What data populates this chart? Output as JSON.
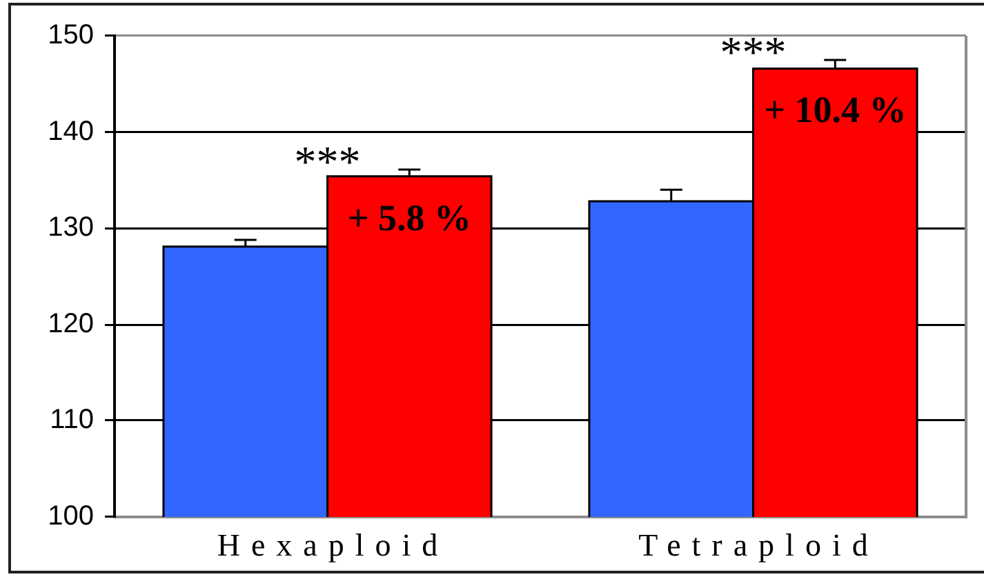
{
  "chart_data": {
    "type": "bar",
    "categories": [
      "Hexaploid",
      "Tetraploid"
    ],
    "series": [
      {
        "color": "#3366ff",
        "values": [
          128.1,
          132.8
        ],
        "errors": [
          [
            128.1,
            128.8
          ],
          [
            132.8,
            134.0
          ]
        ]
      },
      {
        "color": "#ff0000",
        "values": [
          135.4,
          146.6
        ],
        "errors": [
          [
            135.4,
            136.1
          ],
          [
            146.6,
            147.5
          ]
        ]
      }
    ],
    "ylim": [
      100,
      150
    ],
    "yticks": [
      100,
      110,
      120,
      130,
      140,
      150
    ],
    "grid": "y",
    "legend": false,
    "annotations": [
      "***",
      "***",
      {
        "text": "+ 5.8 %",
        "x": "Hexaploid",
        "y": 135.4
      },
      {
        "text": "+ 10.4 %",
        "x": "Tetraploid",
        "y": 146.6
      }
    ]
  }
}
